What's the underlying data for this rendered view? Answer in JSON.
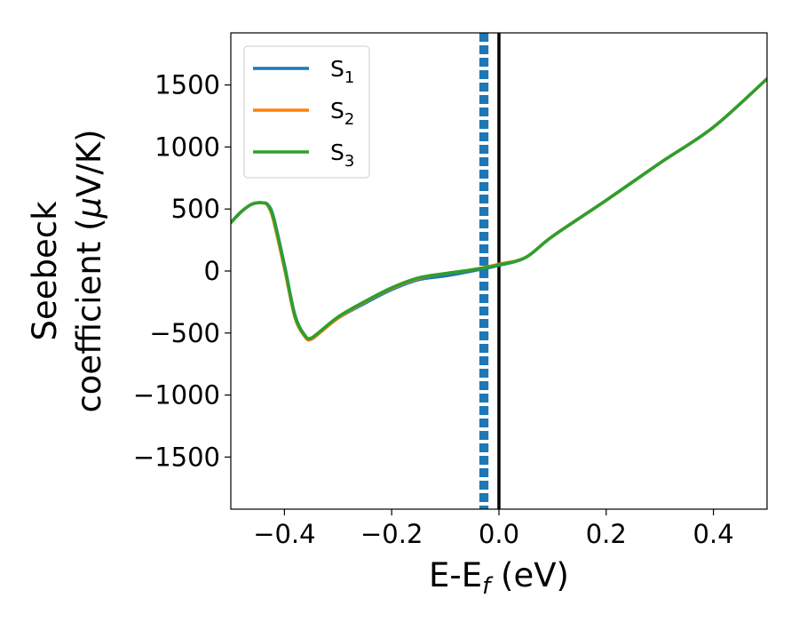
{
  "chart_data": {
    "type": "line",
    "xlabel": {
      "main": "E-E",
      "sub": "f",
      "tail": " (eV)"
    },
    "ylabel": {
      "line1": "Seebeck",
      "line2": "coefficient  (",
      "mu": "μ",
      "unit": "V/K)"
    },
    "xlim": [
      -0.5,
      0.5
    ],
    "ylim": [
      -1920,
      1920
    ],
    "x_ticks": [
      -0.4,
      -0.2,
      0.0,
      0.2,
      0.4
    ],
    "x_tick_labels": [
      "−0.4",
      "−0.2",
      "0.0",
      "0.2",
      "0.4"
    ],
    "y_ticks": [
      -1500,
      -1000,
      -500,
      0,
      500,
      1000,
      1500
    ],
    "y_tick_labels": [
      "−1500",
      "−1000",
      "−500",
      "0",
      "500",
      "1000",
      "1500"
    ],
    "grid": false,
    "legend_position": "top-left",
    "vertical_lines": [
      {
        "x": 0.0,
        "style": "solid",
        "color": "#000000"
      },
      {
        "x": -0.034,
        "style": "dashed",
        "color": "#1f77b4"
      },
      {
        "x": -0.03,
        "style": "dashed",
        "color": "#1f77b4"
      },
      {
        "x": -0.026,
        "style": "dashed",
        "color": "#1f77b4"
      },
      {
        "x": -0.022,
        "style": "dashed",
        "color": "#1f77b4"
      }
    ],
    "series": [
      {
        "name": "S1",
        "label_main": "S",
        "label_sub": "1",
        "color": "#1f77b4",
        "x": [
          -0.5,
          -0.48,
          -0.46,
          -0.44,
          -0.43,
          -0.42,
          -0.4,
          -0.38,
          -0.36,
          -0.35,
          -0.34,
          -0.3,
          -0.25,
          -0.2,
          -0.15,
          -0.1,
          -0.05,
          0.0,
          0.05,
          0.1,
          0.2,
          0.3,
          0.4,
          0.5
        ],
        "y": [
          390,
          480,
          540,
          550,
          530,
          430,
          50,
          -360,
          -530,
          -540,
          -510,
          -380,
          -260,
          -150,
          -70,
          -40,
          0,
          45,
          110,
          280,
          570,
          870,
          1160,
          1550
        ]
      },
      {
        "name": "S2",
        "label_main": "S",
        "label_sub": "2",
        "color": "#ff7f0e",
        "x": [
          -0.5,
          -0.48,
          -0.46,
          -0.44,
          -0.43,
          -0.42,
          -0.4,
          -0.38,
          -0.36,
          -0.35,
          -0.34,
          -0.3,
          -0.25,
          -0.2,
          -0.15,
          -0.1,
          -0.05,
          0.0,
          0.05,
          0.1,
          0.2,
          0.3,
          0.4,
          0.5
        ],
        "y": [
          390,
          480,
          540,
          550,
          520,
          400,
          20,
          -380,
          -540,
          -550,
          -520,
          -380,
          -250,
          -140,
          -60,
          -20,
          10,
          55,
          110,
          280,
          570,
          870,
          1160,
          1550
        ]
      },
      {
        "name": "S3",
        "label_main": "S",
        "label_sub": "3",
        "color": "#2ca02c",
        "x": [
          -0.5,
          -0.48,
          -0.46,
          -0.44,
          -0.43,
          -0.42,
          -0.4,
          -0.38,
          -0.36,
          -0.35,
          -0.34,
          -0.3,
          -0.25,
          -0.2,
          -0.15,
          -0.1,
          -0.05,
          0.0,
          0.05,
          0.1,
          0.2,
          0.3,
          0.4,
          0.5
        ],
        "y": [
          390,
          480,
          540,
          550,
          525,
          420,
          40,
          -370,
          -530,
          -540,
          -510,
          -370,
          -245,
          -135,
          -55,
          -20,
          10,
          50,
          110,
          280,
          570,
          870,
          1160,
          1550
        ]
      }
    ]
  }
}
